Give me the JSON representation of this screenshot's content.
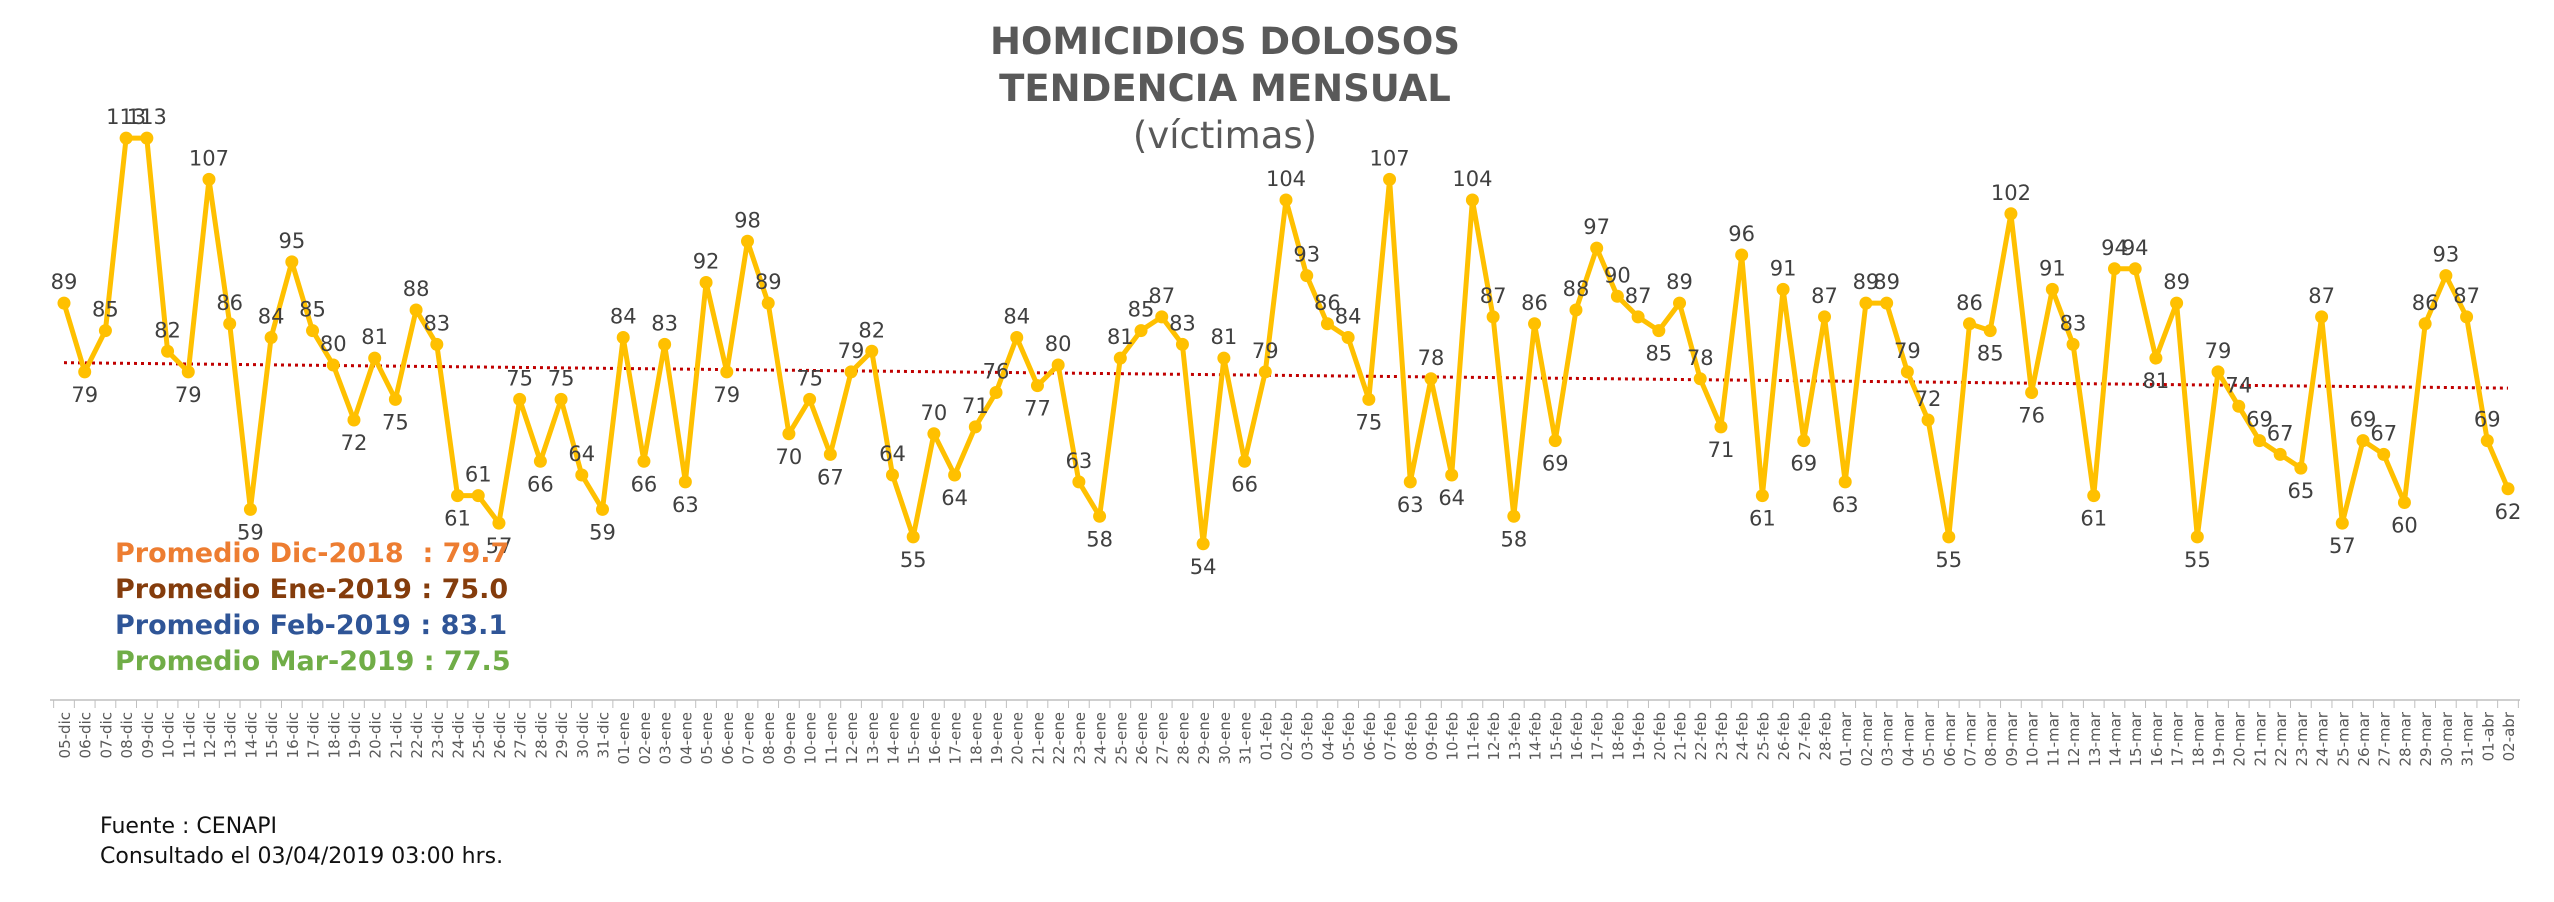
{
  "title": "HOMICIDIOS DOLOSOS",
  "title2": "TENDENCIA MENSUAL",
  "subtitle": "(víctimas)",
  "averages": [
    {
      "label": "Promedio Dic-2018  : ",
      "value": "79.7",
      "color": "#ed7d31"
    },
    {
      "label": "Promedio Ene-2019 : ",
      "value": "75.0",
      "color": "#843c0c"
    },
    {
      "label": "Promedio Feb-2019 : ",
      "value": "83.1",
      "color": "#2f5597"
    },
    {
      "label": "Promedio Mar-2019 : ",
      "value": "77.5",
      "color": "#70ad47"
    }
  ],
  "source": "Fuente : CENAPI",
  "consulted": "Consultado el 03/04/2019  03:00 hrs.",
  "chart_data": {
    "type": "line",
    "ylim": [
      40,
      120
    ],
    "grid": false,
    "categories": [
      "05-dic",
      "06-dic",
      "07-dic",
      "08-dic",
      "09-dic",
      "10-dic",
      "11-dic",
      "12-dic",
      "13-dic",
      "14-dic",
      "15-dic",
      "16-dic",
      "17-dic",
      "18-dic",
      "19-dic",
      "20-dic",
      "21-dic",
      "22-dic",
      "23-dic",
      "24-dic",
      "25-dic",
      "26-dic",
      "27-dic",
      "28-dic",
      "29-dic",
      "30-dic",
      "31-dic",
      "01-ene",
      "02-ene",
      "03-ene",
      "04-ene",
      "05-ene",
      "06-ene",
      "07-ene",
      "08-ene",
      "09-ene",
      "10-ene",
      "11-ene",
      "12-ene",
      "13-ene",
      "14-ene",
      "15-ene",
      "16-ene",
      "17-ene",
      "18-ene",
      "19-ene",
      "20-ene",
      "21-ene",
      "22-ene",
      "23-ene",
      "24-ene",
      "25-ene",
      "26-ene",
      "27-ene",
      "28-ene",
      "29-ene",
      "30-ene",
      "31-ene",
      "01-feb",
      "02-feb",
      "03-feb",
      "04-feb",
      "05-feb",
      "06-feb",
      "07-feb",
      "08-feb",
      "09-feb",
      "10-feb",
      "11-feb",
      "12-feb",
      "13-feb",
      "14-feb",
      "15-feb",
      "16-feb",
      "17-feb",
      "18-feb",
      "19-feb",
      "20-feb",
      "21-feb",
      "22-feb",
      "23-feb",
      "24-feb",
      "25-feb",
      "26-feb",
      "27-feb",
      "28-feb",
      "01-mar",
      "02-mar",
      "03-mar",
      "04-mar",
      "05-mar",
      "06-mar",
      "07-mar",
      "08-mar",
      "09-mar",
      "10-mar",
      "11-mar",
      "12-mar",
      "13-mar",
      "14-mar",
      "15-mar",
      "16-mar",
      "17-mar",
      "18-mar",
      "19-mar",
      "20-mar",
      "21-mar",
      "22-mar",
      "23-mar",
      "24-mar",
      "25-mar",
      "26-mar",
      "27-mar",
      "28-mar",
      "29-mar",
      "30-mar",
      "31-mar",
      "01-abr",
      "02-abr"
    ],
    "series": [
      {
        "values": [
          89,
          79,
          85,
          113,
          113,
          82,
          79,
          107,
          86,
          59,
          84,
          95,
          85,
          80,
          72,
          81,
          75,
          88,
          83,
          61,
          61,
          57,
          75,
          66,
          75,
          64,
          59,
          84,
          66,
          83,
          63,
          92,
          79,
          98,
          89,
          70,
          75,
          67,
          79,
          82,
          64,
          55,
          70,
          64,
          71,
          76,
          84,
          77,
          80,
          63,
          58,
          81,
          85,
          87,
          83,
          54,
          81,
          66,
          79,
          104,
          93,
          86,
          84,
          75,
          107,
          63,
          78,
          64,
          104,
          87,
          58,
          86,
          69,
          88,
          97,
          90,
          87,
          85,
          89,
          78,
          71,
          96,
          61,
          91,
          69,
          87,
          63,
          89,
          89,
          79,
          72,
          55,
          86,
          85,
          102,
          76,
          91,
          83,
          61,
          94,
          94,
          81,
          89,
          55,
          79,
          74,
          69,
          67,
          65,
          87,
          57,
          69,
          67,
          60,
          86,
          93,
          87,
          69,
          62
        ],
        "color": "#ffc000"
      }
    ],
    "trend_color": "#c00000"
  }
}
